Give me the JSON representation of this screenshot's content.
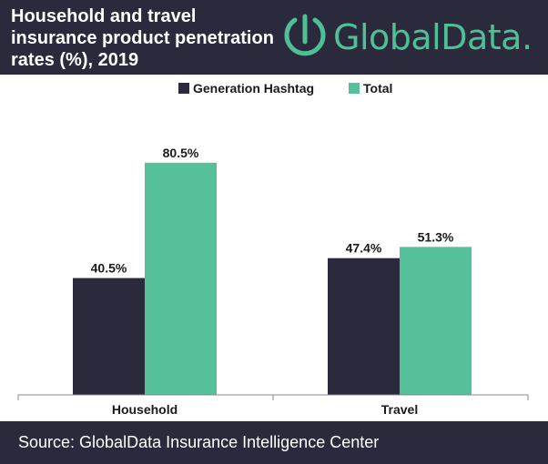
{
  "header": {
    "title": "Household and travel\ninsurance product penetration\nrates (%), 2019",
    "logo_text": "GlobalData."
  },
  "colors": {
    "header_bg": "#2b2a3d",
    "series_1": "#2b2a3d",
    "series_2": "#56c09a",
    "logo": "#4fbf96"
  },
  "chart_data": {
    "type": "bar",
    "title": "Household and travel insurance product penetration rates (%), 2019",
    "categories": [
      "Household",
      "Travel"
    ],
    "series": [
      {
        "name": "Generation Hashtag",
        "values": [
          40.5,
          47.4
        ],
        "labels": [
          "40.5%",
          "47.4%"
        ]
      },
      {
        "name": "Total",
        "values": [
          80.5,
          51.3
        ],
        "labels": [
          "80.5%",
          "51.3%"
        ]
      }
    ],
    "ylim": [
      0,
      100
    ],
    "grid": false,
    "legend_position": "top-center",
    "xlabel": "",
    "ylabel": ""
  },
  "footer": {
    "source": "Source: GlobalData Insurance Intelligence Center"
  }
}
